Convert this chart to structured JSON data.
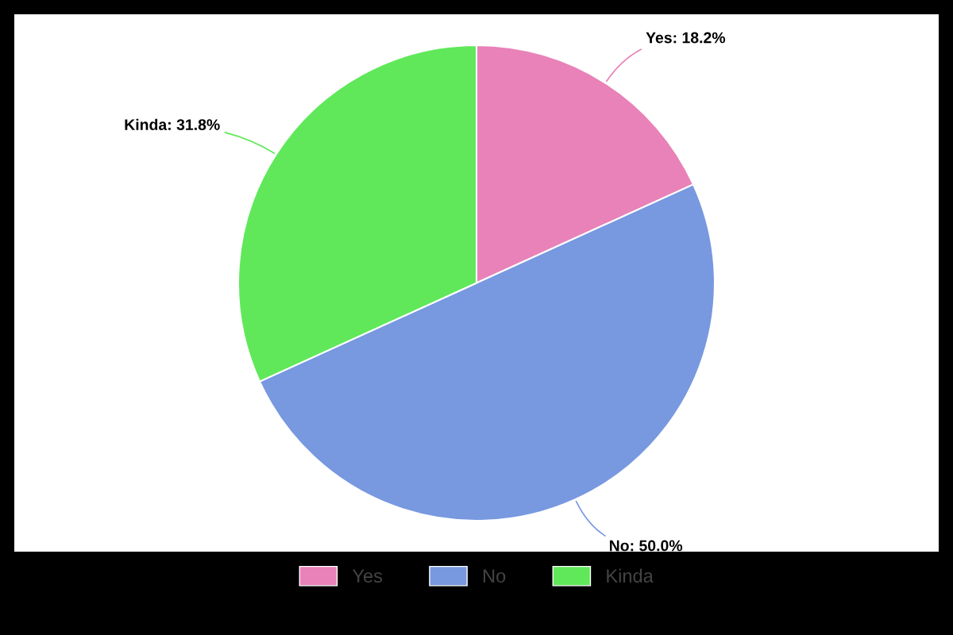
{
  "chart_data": {
    "type": "pie",
    "categories": [
      "Yes",
      "No",
      "Kinda"
    ],
    "values": [
      18.2,
      50.0,
      31.8
    ],
    "colors": [
      "#e882b8",
      "#7898e0",
      "#60e85a"
    ],
    "value_labels": [
      "Yes: 18.2%",
      "No: 50.0%",
      "Kinda: 31.8%"
    ],
    "legend": "bottom"
  }
}
